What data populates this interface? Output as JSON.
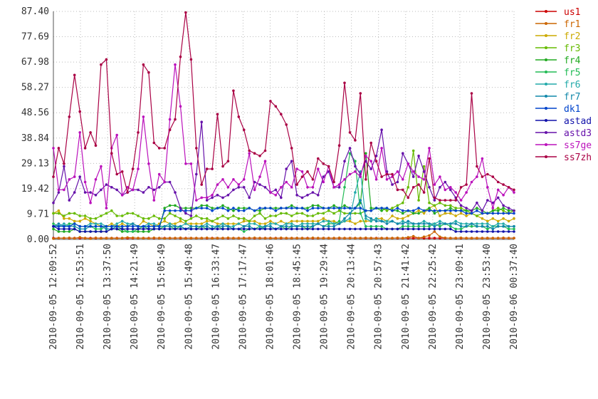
{
  "chart_data": {
    "type": "line",
    "title": "",
    "xlabel": "",
    "ylabel": "",
    "ylim": [
      0,
      87.4
    ],
    "yticks": [
      "0.00",
      "9.71",
      "19.42",
      "29.13",
      "38.84",
      "48.56",
      "58.27",
      "67.98",
      "77.69",
      "87.40"
    ],
    "xticks": [
      "2010-09-05 12:09:52",
      "2010-09-05 12:53:51",
      "2010-09-05 13:37:50",
      "2010-09-05 14:21:49",
      "2010-09-05 15:05:49",
      "2010-09-05 15:49:48",
      "2010-09-05 16:33:47",
      "2010-09-05 17:17:47",
      "2010-09-05 18:01:46",
      "2010-09-05 18:45:45",
      "2010-09-05 19:29:44",
      "2010-09-05 20:13:44",
      "2010-09-05 20:57:43",
      "2010-09-05 21:41:42",
      "2010-09-05 22:25:42",
      "2010-09-05 23:09:41",
      "2010-09-05 23:53:40",
      "2010-09-06 00:37:40"
    ],
    "grid": true,
    "legend_position": "right",
    "series": [
      {
        "name": "us1",
        "color": "#cc0000",
        "values": [
          0.5,
          0.5,
          0.5,
          0.5,
          0.5,
          0.5,
          0.5,
          0.5,
          0.5,
          0.5,
          0.5,
          0.5,
          0.5,
          0.5,
          0.5,
          0.5,
          0.5,
          0.5,
          0.5,
          0.5,
          0.5,
          0.5,
          0.5,
          0.5,
          0.5,
          0.5,
          0.5,
          0.5,
          0.5,
          0.5,
          0.5,
          0.5,
          0.5,
          0.5,
          0.5,
          0.5,
          0.5,
          0.5,
          0.5,
          0.5,
          0.5,
          0.5,
          0.5,
          0.5,
          0.5,
          0.5,
          0.5,
          0.5,
          0.5,
          0.5,
          0.5,
          0.5,
          0.5,
          0.5,
          0.5,
          0.5,
          0.5,
          0.5,
          0.5,
          0.5,
          0.5,
          0.5,
          0.5,
          0.5,
          0.5,
          0.5,
          0.5,
          0.5,
          0.5,
          0.5,
          0.5,
          0.5,
          0.5,
          0.5,
          0.5,
          0.5,
          0.5,
          0.5,
          0.5,
          0.5,
          0.5,
          0.5,
          0.5,
          0.5,
          0.5,
          0.5,
          0.5,
          0.5
        ]
      },
      {
        "name": "fr1",
        "color": "#cc6600",
        "values": [
          0.3,
          0.5,
          0.5,
          0.6,
          0.4,
          0.8,
          0.5,
          0.3,
          0.6,
          0.4,
          0.5,
          0.5,
          0.4,
          0.5,
          0.7,
          0.6,
          0.5,
          0.5,
          0.4,
          0.6,
          0.5,
          0.4,
          0.5,
          0.5,
          0.6,
          0.4,
          0.5,
          0.5,
          0.5,
          0.6,
          0.4,
          0.5,
          0.5,
          0.6,
          0.5,
          0.5,
          0.4,
          0.5,
          0.6,
          0.5,
          0.5,
          0.5,
          0.4,
          0.6,
          0.5,
          0.5,
          0.5,
          0.5,
          0.4,
          0.6,
          0.5,
          0.5,
          0.5,
          0.5,
          0.6,
          0.5,
          0.5,
          0.5,
          0.5,
          0.6,
          0.5,
          0.4,
          0.5,
          0.5,
          0.5,
          0.6,
          0.5,
          0.8,
          1.2,
          0.5,
          1.0,
          1.5,
          3.0,
          1.0,
          0.6,
          0.5,
          0.5,
          0.6,
          0.5,
          0.5,
          0.5,
          0.5,
          0.5,
          0.5,
          0.5,
          0.6,
          0.5,
          0.5
        ]
      },
      {
        "name": "fr2",
        "color": "#ccaa00",
        "values": [
          10,
          11,
          8,
          8,
          7,
          7,
          8,
          7,
          6,
          5,
          5,
          6,
          5,
          6,
          5,
          6,
          5,
          7,
          6,
          5,
          6,
          7,
          6,
          6,
          7,
          6,
          6,
          6,
          6,
          7,
          7,
          6,
          6,
          6,
          6,
          6,
          7,
          7,
          7,
          6,
          6,
          7,
          6,
          7,
          6,
          7,
          7,
          7,
          7,
          7,
          7,
          8,
          7,
          7,
          6,
          7,
          7,
          6,
          7,
          7,
          7,
          8,
          8,
          7,
          9,
          8,
          8,
          9,
          10,
          11,
          10,
          12,
          13,
          9,
          10,
          10,
          9,
          10,
          9,
          10,
          9,
          8,
          7,
          8,
          7,
          8,
          7,
          8
        ]
      },
      {
        "name": "fr3",
        "color": "#66bb00",
        "values": [
          10,
          10,
          9,
          10,
          10,
          9,
          9,
          8,
          8,
          9,
          10,
          11,
          9,
          9,
          10,
          10,
          9,
          8,
          8,
          9,
          8,
          8,
          10,
          9,
          8,
          7,
          8,
          9,
          8,
          8,
          7,
          8,
          9,
          8,
          9,
          8,
          8,
          7,
          9,
          10,
          8,
          9,
          9,
          10,
          10,
          9,
          10,
          10,
          9,
          9,
          10,
          10,
          11,
          10,
          11,
          10,
          10,
          10,
          10,
          11,
          11,
          12,
          12,
          11,
          12,
          13,
          14,
          20,
          34,
          15,
          28,
          14,
          13,
          14,
          13,
          13,
          12,
          12,
          11,
          10,
          9,
          10,
          10,
          11,
          12,
          11,
          10,
          11
        ]
      },
      {
        "name": "fr4",
        "color": "#22aa22",
        "values": [
          4,
          3,
          3,
          3,
          4,
          3,
          3,
          3,
          3,
          3,
          3,
          4,
          4,
          3,
          3,
          3,
          3,
          3,
          3,
          4,
          4,
          12,
          13,
          13,
          12,
          12,
          12,
          12,
          13,
          13,
          12,
          12,
          13,
          12,
          11,
          12,
          12,
          12,
          11,
          11,
          12,
          12,
          12,
          12,
          12,
          13,
          12,
          12,
          12,
          13,
          13,
          12,
          12,
          13,
          12,
          13,
          12,
          12,
          14,
          33,
          12,
          12,
          11,
          12,
          11,
          11,
          10,
          11,
          10,
          10,
          11,
          12,
          10,
          11,
          11,
          12,
          11,
          11,
          11,
          11,
          12,
          11,
          10,
          11,
          11,
          12,
          11,
          11
        ]
      },
      {
        "name": "fr5",
        "color": "#22bb55",
        "values": [
          6,
          5,
          5,
          6,
          6,
          5,
          5,
          5,
          4,
          4,
          5,
          5,
          5,
          4,
          3,
          3,
          4,
          5,
          4,
          4,
          4,
          5,
          5,
          4,
          5,
          4,
          4,
          4,
          5,
          4,
          4,
          5,
          4,
          4,
          4,
          4,
          3,
          4,
          4,
          5,
          4,
          4,
          4,
          5,
          4,
          5,
          5,
          5,
          4,
          5,
          6,
          5,
          6,
          6,
          7,
          20,
          33,
          30,
          10,
          5,
          5,
          5,
          5,
          4,
          4,
          4,
          5,
          5,
          5,
          5,
          5,
          5,
          6,
          5,
          6,
          5,
          4,
          4,
          5,
          5,
          5,
          5,
          4,
          5,
          5,
          5,
          4,
          4
        ]
      },
      {
        "name": "fr6",
        "color": "#22aaaa",
        "values": [
          5,
          5,
          6,
          5,
          6,
          5,
          5,
          6,
          6,
          6,
          5,
          5,
          6,
          7,
          6,
          6,
          5,
          5,
          6,
          6,
          5,
          5,
          6,
          5,
          5,
          6,
          5,
          5,
          5,
          6,
          5,
          5,
          6,
          5,
          5,
          6,
          5,
          6,
          6,
          5,
          5,
          6,
          6,
          5,
          6,
          6,
          5,
          6,
          6,
          6,
          6,
          7,
          7,
          6,
          6,
          7,
          8,
          18,
          26,
          8,
          7,
          8,
          7,
          7,
          7,
          6,
          7,
          6,
          6,
          6,
          7,
          6,
          6,
          7,
          6,
          6,
          7,
          6,
          6,
          6,
          6,
          6,
          6,
          5,
          6,
          6,
          5,
          5
        ]
      },
      {
        "name": "fr7",
        "color": "#1188aa",
        "values": [
          5,
          6,
          5,
          5,
          5,
          4,
          4,
          5,
          5,
          5,
          4,
          4,
          5,
          5,
          5,
          6,
          5,
          5,
          5,
          5,
          5,
          5,
          5,
          5,
          5,
          4,
          5,
          5,
          5,
          5,
          4,
          5,
          5,
          5,
          4,
          4,
          5,
          5,
          4,
          4,
          5,
          5,
          4,
          5,
          5,
          5,
          5,
          5,
          5,
          5,
          6,
          5,
          5,
          5,
          6,
          8,
          10,
          12,
          15,
          9,
          8,
          7,
          7,
          6,
          7,
          6,
          6,
          7,
          6,
          6,
          6,
          6,
          5,
          6,
          6,
          6,
          6,
          5,
          5,
          6,
          5,
          5,
          5,
          4,
          5,
          5,
          5,
          5
        ]
      },
      {
        "name": "dk1",
        "color": "#0044cc",
        "values": [
          5,
          5,
          5,
          5,
          6,
          5,
          5,
          5,
          5,
          5,
          5,
          5,
          5,
          5,
          5,
          5,
          5,
          5,
          5,
          5,
          5,
          11,
          11,
          11,
          11,
          11,
          11,
          12,
          12,
          12,
          11,
          12,
          12,
          11,
          12,
          11,
          11,
          12,
          11,
          12,
          12,
          12,
          11,
          12,
          12,
          12,
          12,
          12,
          11,
          12,
          12,
          12,
          12,
          12,
          12,
          12,
          12,
          12,
          12,
          11,
          11,
          12,
          12,
          12,
          11,
          12,
          11,
          11,
          11,
          12,
          11,
          11,
          11,
          11,
          11,
          11,
          11,
          11,
          10,
          10,
          11,
          10,
          10,
          10,
          10,
          10,
          10,
          10
        ]
      },
      {
        "name": "astad",
        "color": "#1111aa",
        "values": [
          5,
          4,
          4,
          4,
          4,
          3,
          3,
          3,
          3,
          3,
          3,
          4,
          4,
          4,
          4,
          4,
          4,
          4,
          4,
          4,
          4,
          4,
          4,
          4,
          4,
          4,
          4,
          4,
          4,
          4,
          4,
          4,
          4,
          4,
          4,
          4,
          4,
          4,
          4,
          4,
          4,
          4,
          4,
          4,
          4,
          4,
          4,
          4,
          4,
          4,
          4,
          4,
          4,
          4,
          4,
          4,
          4,
          4,
          4,
          4,
          4,
          4,
          4,
          4,
          4,
          4,
          4,
          4,
          4,
          4,
          4,
          4,
          4,
          4,
          4,
          4,
          3,
          3,
          3,
          3,
          3,
          3,
          3,
          3,
          3,
          3,
          3,
          3
        ]
      },
      {
        "name": "astd3",
        "color": "#6611aa",
        "values": [
          14,
          18,
          28,
          15,
          18,
          24,
          18,
          18,
          17,
          19,
          21,
          20,
          19,
          17,
          18,
          19,
          19,
          18,
          20,
          19,
          20,
          22,
          22,
          18,
          12,
          10,
          9,
          25,
          45,
          15,
          16,
          17,
          16,
          17,
          19,
          20,
          20,
          16,
          22,
          21,
          20,
          18,
          19,
          16,
          27,
          30,
          17,
          16,
          17,
          18,
          17,
          24,
          26,
          20,
          20,
          30,
          35,
          28,
          25,
          30,
          27,
          32,
          42,
          26,
          21,
          22,
          33,
          29,
          24,
          32,
          26,
          20,
          15,
          20,
          22,
          19,
          16,
          13,
          12,
          11,
          14,
          11,
          15,
          14,
          16,
          13,
          12,
          11
        ]
      },
      {
        "name": "ss7ge",
        "color": "#bb11bb",
        "values": [
          35,
          19,
          19,
          23,
          24,
          41,
          22,
          14,
          23,
          28,
          12,
          35,
          40,
          17,
          20,
          19,
          27,
          47,
          29,
          15,
          25,
          22,
          46,
          67,
          51,
          29,
          29,
          15,
          16,
          16,
          17,
          21,
          23,
          20,
          23,
          21,
          23,
          33,
          19,
          24,
          30,
          18,
          17,
          20,
          22,
          20,
          27,
          26,
          20,
          20,
          27,
          22,
          28,
          20,
          21,
          23,
          25,
          26,
          24,
          32,
          30,
          23,
          35,
          23,
          24,
          26,
          23,
          29,
          26,
          24,
          23,
          35,
          21,
          24,
          19,
          20,
          18,
          15,
          18,
          22,
          24,
          31,
          20,
          12,
          19,
          17,
          20,
          18
        ]
      },
      {
        "name": "ss7zh",
        "color": "#aa0044",
        "values": [
          24,
          35,
          29,
          47,
          63,
          49,
          35,
          41,
          36,
          67,
          69,
          33,
          25,
          26,
          18,
          27,
          41,
          67,
          64,
          37,
          35,
          35,
          42,
          46,
          70,
          87,
          69,
          35,
          21,
          27,
          27,
          48,
          28,
          30,
          57,
          47,
          42,
          34,
          33,
          32,
          34,
          53,
          51,
          48,
          44,
          35,
          21,
          24,
          26,
          23,
          31,
          29,
          28,
          22,
          36,
          60,
          41,
          38,
          56,
          23,
          37,
          30,
          24,
          25,
          25,
          19,
          19,
          16,
          20,
          21,
          18,
          31,
          16,
          15,
          15,
          15,
          15,
          20,
          21,
          56,
          28,
          24,
          25,
          24,
          22,
          21,
          20,
          19
        ]
      }
    ]
  }
}
